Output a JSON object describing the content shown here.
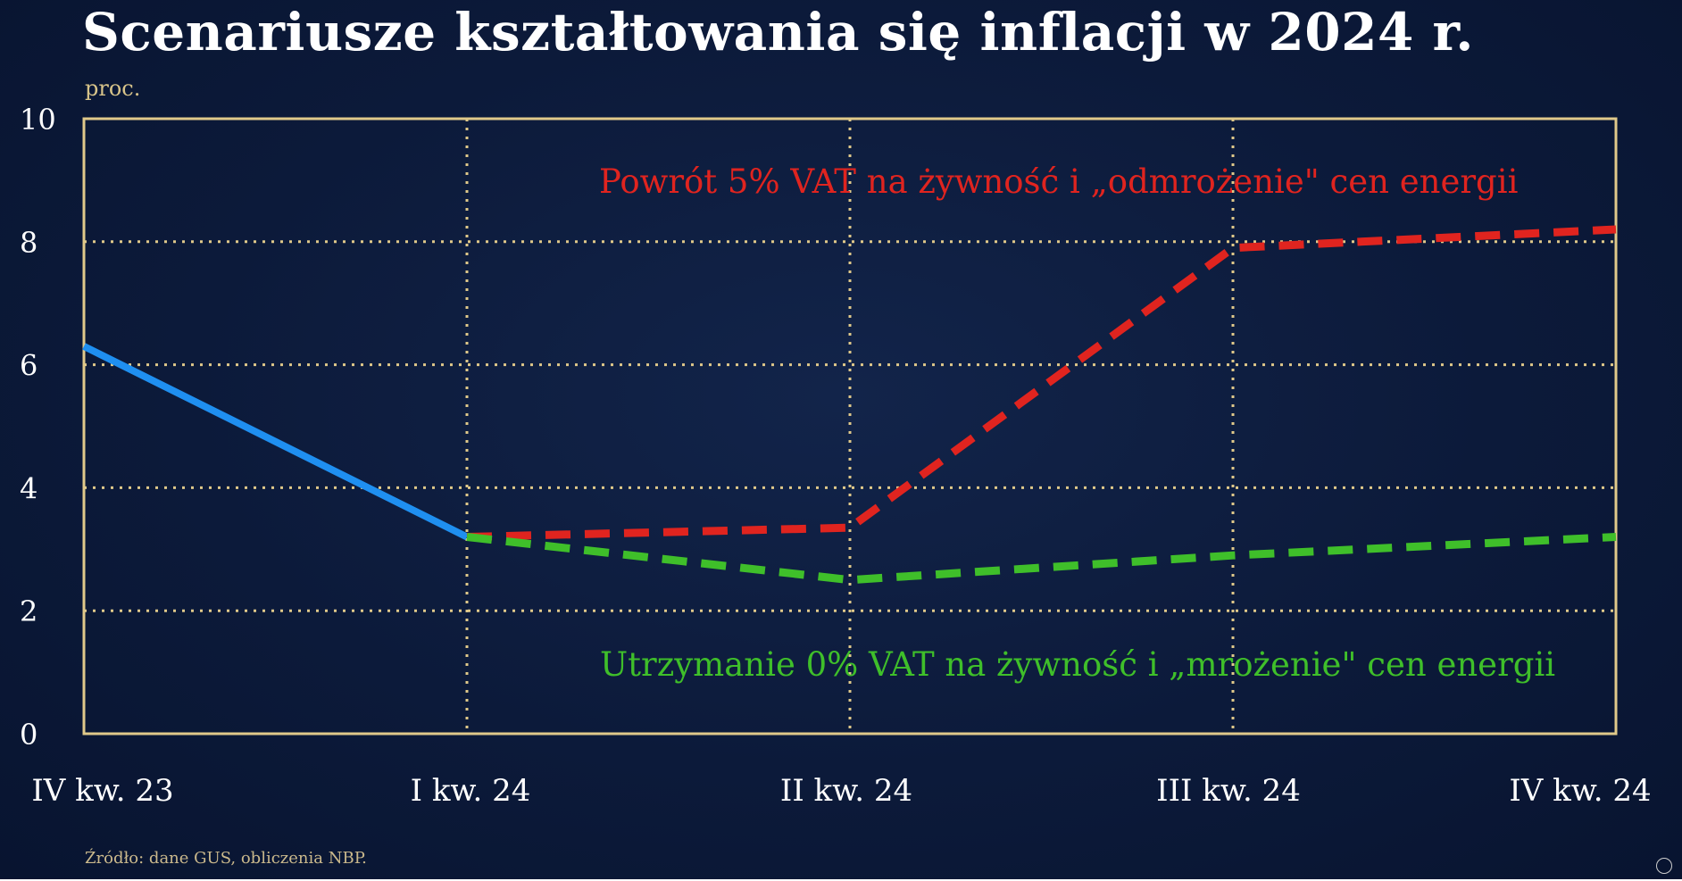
{
  "title": "Scenariusze kształtowania się inflacji w 2024 r.",
  "source": "Źródło: dane GUS, obliczenia NBP.",
  "colors": {
    "background": "#0c1a3a",
    "frame": "#e0c98a",
    "grid": "#e0c98a",
    "historical": "#1f8ff0",
    "scenario_high": "#e0241f",
    "scenario_low": "#3fbf2a",
    "axis_text": "#ffffff"
  },
  "chart_data": {
    "type": "line",
    "ylabel": "proc.",
    "ylim": [
      0,
      10
    ],
    "yticks": [
      0,
      2,
      4,
      6,
      8,
      10
    ],
    "categories": [
      "IV kw. 23",
      "I kw. 24",
      "II kw. 24",
      "III kw. 24",
      "IV kw. 24"
    ],
    "grid": true,
    "series": [
      {
        "key": "historical",
        "style": "solid",
        "values": [
          6.3,
          3.2,
          null,
          null,
          null
        ]
      },
      {
        "key": "scenario_high",
        "style": "dashed",
        "values": [
          null,
          3.2,
          3.35,
          7.9,
          8.2
        ]
      },
      {
        "key": "scenario_low",
        "style": "dashed",
        "values": [
          null,
          3.2,
          2.5,
          2.9,
          3.2
        ]
      }
    ],
    "annotations": [
      {
        "text": "Powrót 5% VAT na żywność i „odmrożenie\" cen energii",
        "color_key": "scenario_high"
      },
      {
        "text": "Utrzymanie 0% VAT na żywność i „mrożenie\" cen energii",
        "color_key": "scenario_low"
      }
    ]
  }
}
